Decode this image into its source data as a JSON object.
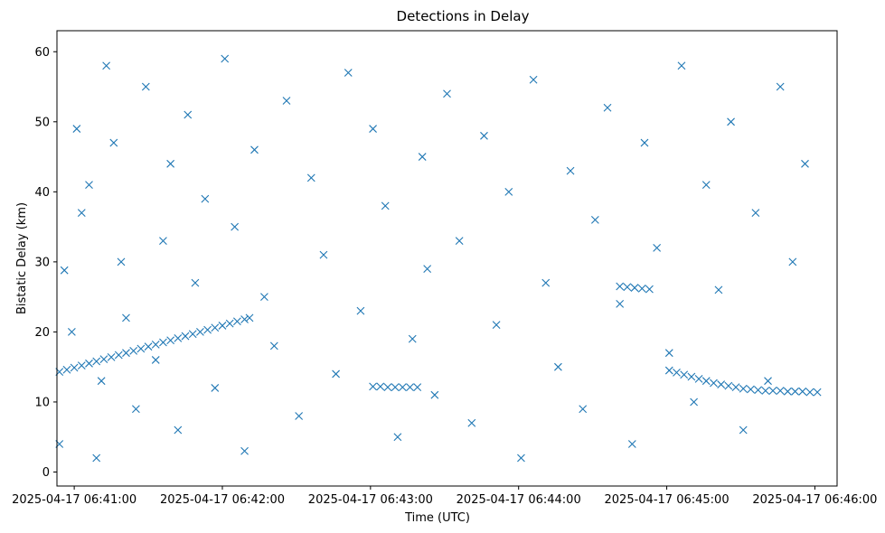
{
  "chart_data": {
    "type": "scatter",
    "title": "Detections in Delay",
    "xlabel": "Time (UTC)",
    "ylabel": "Bistatic Delay (km)",
    "x_start": "2025-04-17 06:40:51",
    "x_end": "2025-04-17 06:46:09",
    "xlim": [
      "2025-04-17 06:40:53",
      "2025-04-17 06:46:09"
    ],
    "ylim": [
      -2,
      63
    ],
    "x_ticks": [
      "2025-04-17 06:41:00",
      "2025-04-17 06:42:00",
      "2025-04-17 06:43:00",
      "2025-04-17 06:44:00",
      "2025-04-17 06:45:00",
      "2025-04-17 06:46:00"
    ],
    "y_ticks": [
      0,
      10,
      20,
      30,
      40,
      50,
      60
    ],
    "marker": "x",
    "color": "#1f77b4",
    "grid": false,
    "series": [
      {
        "x": [
          3,
          5,
          8,
          10,
          12,
          15,
          18,
          20,
          22,
          25,
          28,
          30,
          34,
          38,
          42,
          45,
          48,
          51,
          55,
          58,
          62,
          66,
          70,
          74,
          78,
          82,
          86,
          90,
          95,
          100,
          105,
          110,
          115,
          120,
          125,
          130,
          135,
          140,
          146,
          150,
          152,
          155,
          160,
          165,
          170,
          175,
          180,
          185,
          190,
          195,
          200,
          205,
          210,
          215,
          220,
          225,
          230,
          235,
          240,
          245,
          250,
          255,
          260,
          265,
          270,
          275,
          280,
          285,
          290,
          295,
          300,
          305
        ],
        "y": [
          4,
          28.8,
          20,
          49,
          37,
          41,
          2,
          13,
          58,
          47,
          30,
          22,
          9,
          55,
          16,
          33,
          44,
          6,
          51,
          27,
          39,
          12,
          59,
          35,
          3,
          46,
          25,
          18,
          53,
          8,
          42,
          31,
          14,
          57,
          23,
          49,
          38,
          5,
          19,
          45,
          29,
          11,
          54,
          33,
          7,
          48,
          21,
          40,
          2,
          56,
          27,
          15,
          43,
          9,
          36,
          52,
          24,
          4,
          47,
          32,
          17,
          58,
          10,
          41,
          26,
          50,
          6,
          37,
          13,
          55,
          30,
          44
        ]
      },
      {
        "x": [
          3,
          6,
          9,
          12,
          15,
          18,
          21,
          24,
          27,
          30,
          33,
          36,
          39,
          42,
          45,
          48,
          51,
          54,
          57,
          60,
          63,
          66,
          69,
          72,
          75,
          78,
          80
        ],
        "y": [
          14.3,
          14.6,
          14.9,
          15.2,
          15.5,
          15.8,
          16.1,
          16.4,
          16.7,
          17,
          17.3,
          17.6,
          17.9,
          18.2,
          18.5,
          18.8,
          19.1,
          19.4,
          19.7,
          20,
          20.3,
          20.6,
          20.9,
          21.2,
          21.5,
          21.8,
          22
        ]
      },
      {
        "x": [
          250,
          253,
          256,
          259,
          262,
          265,
          268,
          271,
          274,
          277,
          280,
          283,
          286,
          289,
          292,
          295,
          298,
          301,
          304,
          307,
          310
        ],
        "y": [
          14.5,
          14.2,
          13.9,
          13.6,
          13.3,
          13,
          12.7,
          12.5,
          12.3,
          12.1,
          11.9,
          11.8,
          11.7,
          11.6,
          11.6,
          11.6,
          11.5,
          11.5,
          11.5,
          11.4,
          11.4
        ]
      },
      {
        "x": [
          130,
          133,
          136,
          139,
          142,
          145,
          148
        ],
        "y": [
          12.2,
          12.2,
          12.1,
          12.1,
          12.1,
          12.1,
          12.1
        ]
      },
      {
        "x": [
          230,
          233,
          236,
          239,
          242
        ],
        "y": [
          26.5,
          26.4,
          26.3,
          26.2,
          26.1
        ]
      }
    ]
  }
}
